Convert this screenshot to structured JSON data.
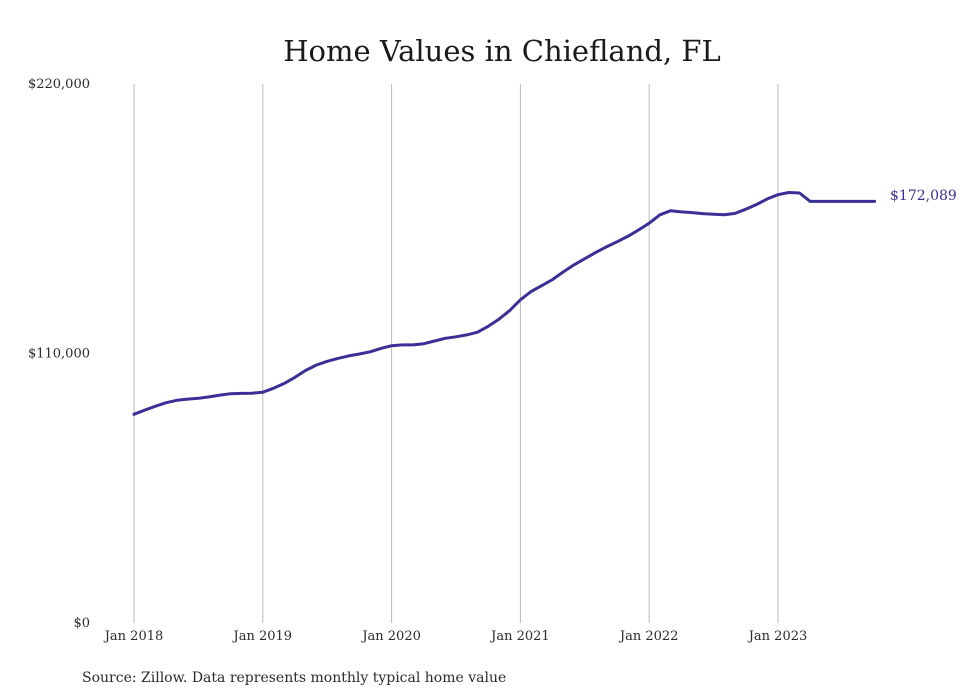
{
  "chart_data": {
    "type": "line",
    "title": "Home Values in Chiefland, FL",
    "source": "Source: Zillow. Data represents monthly typical home value",
    "y_ticks": [
      {
        "value": 0,
        "label": "$0"
      },
      {
        "value": 110000,
        "label": "$110,000"
      },
      {
        "value": 220000,
        "label": "$220,000"
      }
    ],
    "ylim": [
      0,
      220000
    ],
    "x_ticks": [
      {
        "value": "2018-01",
        "label": "Jan 2018"
      },
      {
        "value": "2019-01",
        "label": "Jan 2019"
      },
      {
        "value": "2020-01",
        "label": "Jan 2020"
      },
      {
        "value": "2021-01",
        "label": "Jan 2021"
      },
      {
        "value": "2022-01",
        "label": "Jan 2022"
      },
      {
        "value": "2023-01",
        "label": "Jan 2023"
      }
    ],
    "xlim": [
      "2018-01",
      "2023-10"
    ],
    "grid": "vertical",
    "end_label": "$172,089",
    "series": [
      {
        "color": "#3a2f96",
        "x": [
          "2018-01",
          "2018-02",
          "2018-03",
          "2018-04",
          "2018-05",
          "2018-06",
          "2018-07",
          "2018-08",
          "2018-09",
          "2018-10",
          "2018-11",
          "2018-12",
          "2019-01",
          "2019-02",
          "2019-03",
          "2019-04",
          "2019-05",
          "2019-06",
          "2019-07",
          "2019-08",
          "2019-09",
          "2019-10",
          "2019-11",
          "2019-12",
          "2020-01",
          "2020-02",
          "2020-03",
          "2020-04",
          "2020-05",
          "2020-06",
          "2020-07",
          "2020-08",
          "2020-09",
          "2020-10",
          "2020-11",
          "2020-12",
          "2021-01",
          "2021-02",
          "2021-03",
          "2021-04",
          "2021-05",
          "2021-06",
          "2021-07",
          "2021-08",
          "2021-09",
          "2021-10",
          "2021-11",
          "2021-12",
          "2022-01",
          "2022-02",
          "2022-03",
          "2022-04",
          "2022-05",
          "2022-06",
          "2022-07",
          "2022-08",
          "2022-09",
          "2022-10",
          "2022-11",
          "2022-12",
          "2023-01",
          "2023-02",
          "2023-03",
          "2023-04",
          "2023-05",
          "2023-06",
          "2023-07",
          "2023-08",
          "2023-09",
          "2023-10"
        ],
        "values": [
          85200,
          86900,
          88500,
          89900,
          90900,
          91400,
          91700,
          92300,
          93000,
          93600,
          93700,
          93800,
          94200,
          95800,
          97800,
          100300,
          103100,
          105300,
          106800,
          108000,
          109000,
          109800,
          110700,
          112100,
          113200,
          113500,
          113500,
          114000,
          115100,
          116200,
          116800,
          117600,
          118700,
          121100,
          124000,
          127500,
          131900,
          135300,
          137700,
          140200,
          143300,
          146200,
          148700,
          151200,
          153500,
          155600,
          157800,
          160400,
          163200,
          166600,
          168300,
          167800,
          167500,
          167100,
          166800,
          166600,
          167200,
          168900,
          170800,
          173100,
          174800,
          175700,
          175500,
          172089,
          172089,
          172089,
          172089,
          172089,
          172089,
          172089
        ]
      }
    ]
  }
}
